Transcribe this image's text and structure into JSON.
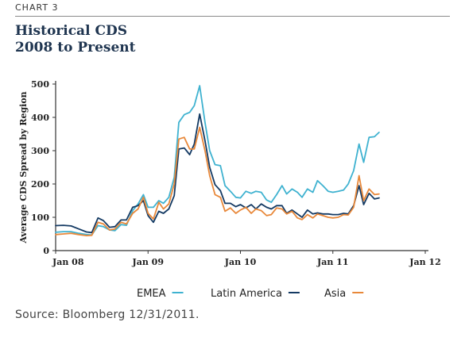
{
  "header": {
    "tag": "CHART 3",
    "title_line1": "Historical CDS",
    "title_line2": "2008 to Present"
  },
  "source": "Source: Bloomberg 12/31/2011.",
  "colors": {
    "EMEA": "#3fb2d0",
    "Latin America": "#143a63",
    "Asia": "#e8883a",
    "axis": "#333333"
  },
  "chart_data": {
    "type": "line",
    "title": "Historical CDS",
    "subtitle": "2008 to Present",
    "xlabel": "",
    "ylabel": "Average CDS Spread by Region",
    "ylim": [
      0,
      500
    ],
    "yticks": [
      0,
      100,
      200,
      300,
      400,
      500
    ],
    "xlim": [
      0,
      48
    ],
    "xticks": [
      {
        "label": "Jan 08",
        "pos": 0
      },
      {
        "label": "Jan 09",
        "pos": 12
      },
      {
        "label": "Jan 10",
        "pos": 24
      },
      {
        "label": "Jan 11",
        "pos": 36
      },
      {
        "label": "Jan 12",
        "pos": 48
      }
    ],
    "legend_position": "bottom",
    "grid": false,
    "series": [
      {
        "name": "EMEA",
        "points": [
          [
            0,
            55
          ],
          [
            1,
            57
          ],
          [
            2,
            57
          ],
          [
            3,
            52
          ],
          [
            4,
            48
          ],
          [
            4.7,
            47
          ],
          [
            5.5,
            75
          ],
          [
            6.2,
            72
          ],
          [
            7,
            62
          ],
          [
            7.7,
            60
          ],
          [
            8.5,
            78
          ],
          [
            9.2,
            76
          ],
          [
            10,
            120
          ],
          [
            10.7,
            140
          ],
          [
            11.4,
            168
          ],
          [
            12,
            130
          ],
          [
            12.7,
            130
          ],
          [
            13.4,
            150
          ],
          [
            14,
            142
          ],
          [
            14.7,
            160
          ],
          [
            15.4,
            220
          ],
          [
            16,
            385
          ],
          [
            16.7,
            408
          ],
          [
            17.4,
            415
          ],
          [
            18,
            435
          ],
          [
            18.7,
            495
          ],
          [
            19.4,
            385
          ],
          [
            20,
            300
          ],
          [
            20.7,
            258
          ],
          [
            21.4,
            255
          ],
          [
            22,
            195
          ],
          [
            22.7,
            178
          ],
          [
            23.4,
            160
          ],
          [
            24,
            158
          ],
          [
            24.7,
            178
          ],
          [
            25.4,
            172
          ],
          [
            26,
            178
          ],
          [
            26.7,
            175
          ],
          [
            27.4,
            152
          ],
          [
            28,
            145
          ],
          [
            28.7,
            168
          ],
          [
            29.4,
            195
          ],
          [
            30,
            170
          ],
          [
            30.7,
            185
          ],
          [
            31.4,
            175
          ],
          [
            32,
            160
          ],
          [
            32.7,
            185
          ],
          [
            33.4,
            175
          ],
          [
            34,
            210
          ],
          [
            34.7,
            195
          ],
          [
            35.4,
            178
          ],
          [
            36,
            175
          ],
          [
            36.7,
            178
          ],
          [
            37.4,
            182
          ],
          [
            38,
            200
          ],
          [
            38.7,
            240
          ],
          [
            39.4,
            320
          ],
          [
            40,
            265
          ],
          [
            40.7,
            340
          ],
          [
            41.4,
            342
          ],
          [
            42,
            355
          ]
        ]
      },
      {
        "name": "Latin America",
        "points": [
          [
            0,
            75
          ],
          [
            1,
            76
          ],
          [
            2,
            74
          ],
          [
            3,
            65
          ],
          [
            4,
            56
          ],
          [
            4.7,
            54
          ],
          [
            5.5,
            98
          ],
          [
            6.2,
            90
          ],
          [
            7,
            70
          ],
          [
            7.7,
            72
          ],
          [
            8.5,
            92
          ],
          [
            9.2,
            92
          ],
          [
            10,
            130
          ],
          [
            10.7,
            135
          ],
          [
            11.4,
            150
          ],
          [
            12,
            105
          ],
          [
            12.7,
            85
          ],
          [
            13.4,
            118
          ],
          [
            14,
            112
          ],
          [
            14.7,
            125
          ],
          [
            15.4,
            165
          ],
          [
            16,
            305
          ],
          [
            16.7,
            308
          ],
          [
            17.4,
            288
          ],
          [
            18,
            320
          ],
          [
            18.7,
            410
          ],
          [
            19.4,
            330
          ],
          [
            20,
            250
          ],
          [
            20.7,
            198
          ],
          [
            21.4,
            180
          ],
          [
            22,
            142
          ],
          [
            22.7,
            142
          ],
          [
            23.4,
            132
          ],
          [
            24,
            138
          ],
          [
            24.7,
            128
          ],
          [
            25.4,
            138
          ],
          [
            26,
            125
          ],
          [
            26.7,
            140
          ],
          [
            27.4,
            130
          ],
          [
            28,
            125
          ],
          [
            28.7,
            135
          ],
          [
            29.4,
            135
          ],
          [
            30,
            112
          ],
          [
            30.7,
            122
          ],
          [
            31.4,
            110
          ],
          [
            32,
            100
          ],
          [
            32.7,
            122
          ],
          [
            33.4,
            110
          ],
          [
            34,
            113
          ],
          [
            34.7,
            110
          ],
          [
            35.4,
            110
          ],
          [
            36,
            108
          ],
          [
            36.7,
            108
          ],
          [
            37.4,
            112
          ],
          [
            38,
            110
          ],
          [
            38.7,
            135
          ],
          [
            39.4,
            195
          ],
          [
            40,
            138
          ],
          [
            40.7,
            172
          ],
          [
            41.4,
            155
          ],
          [
            42,
            158
          ]
        ]
      },
      {
        "name": "Asia",
        "points": [
          [
            0,
            48
          ],
          [
            1,
            50
          ],
          [
            2,
            52
          ],
          [
            3,
            48
          ],
          [
            4,
            45
          ],
          [
            4.7,
            46
          ],
          [
            5.5,
            85
          ],
          [
            6.2,
            80
          ],
          [
            7,
            62
          ],
          [
            7.7,
            65
          ],
          [
            8.5,
            85
          ],
          [
            9.2,
            80
          ],
          [
            10,
            112
          ],
          [
            10.7,
            125
          ],
          [
            11.4,
            160
          ],
          [
            12,
            112
          ],
          [
            12.7,
            95
          ],
          [
            13.4,
            145
          ],
          [
            14,
            125
          ],
          [
            14.7,
            140
          ],
          [
            15.4,
            200
          ],
          [
            16,
            335
          ],
          [
            16.7,
            340
          ],
          [
            17.4,
            305
          ],
          [
            18,
            305
          ],
          [
            18.7,
            370
          ],
          [
            19.4,
            300
          ],
          [
            20,
            225
          ],
          [
            20.7,
            168
          ],
          [
            21.4,
            160
          ],
          [
            22,
            118
          ],
          [
            22.7,
            128
          ],
          [
            23.4,
            112
          ],
          [
            24,
            122
          ],
          [
            24.7,
            130
          ],
          [
            25.4,
            112
          ],
          [
            26,
            125
          ],
          [
            26.7,
            120
          ],
          [
            27.4,
            105
          ],
          [
            28,
            108
          ],
          [
            28.7,
            128
          ],
          [
            29.4,
            125
          ],
          [
            30,
            110
          ],
          [
            30.7,
            118
          ],
          [
            31.4,
            98
          ],
          [
            32,
            93
          ],
          [
            32.7,
            108
          ],
          [
            33.4,
            98
          ],
          [
            34,
            110
          ],
          [
            34.7,
            105
          ],
          [
            35.4,
            100
          ],
          [
            36,
            98
          ],
          [
            36.7,
            100
          ],
          [
            37.4,
            108
          ],
          [
            38,
            107
          ],
          [
            38.7,
            130
          ],
          [
            39.4,
            225
          ],
          [
            40,
            150
          ],
          [
            40.7,
            185
          ],
          [
            41.4,
            168
          ],
          [
            42,
            170
          ]
        ]
      }
    ]
  }
}
